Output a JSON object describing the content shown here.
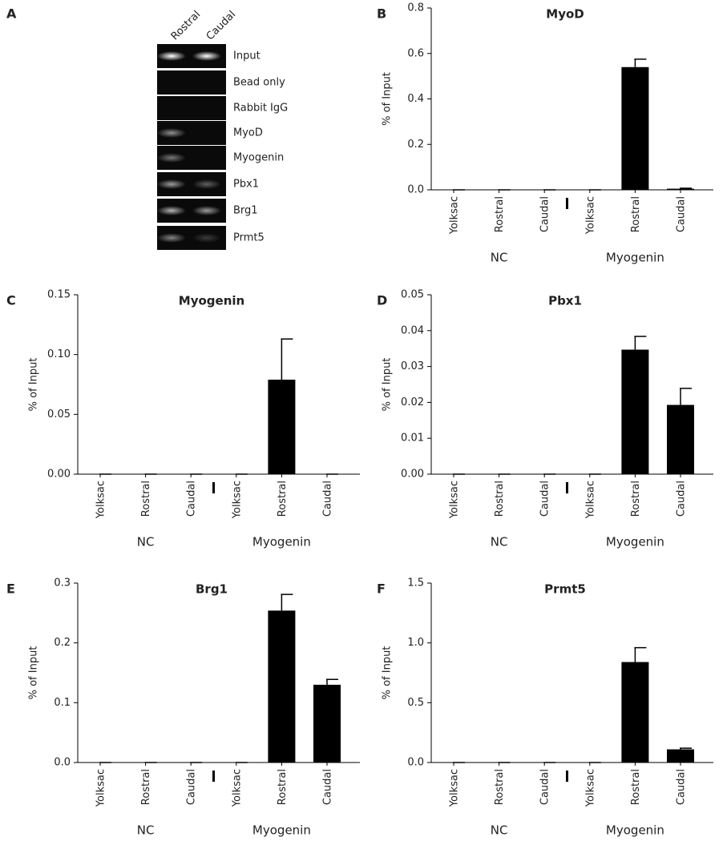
{
  "gel": {
    "panel": "A",
    "lanes": [
      "Rostral",
      "Caudal"
    ],
    "rows": [
      "Input",
      "Bead only",
      "Rabbit IgG",
      "MyoD",
      "Myogenin",
      "Pbx1",
      "Brg1",
      "Prmt5"
    ]
  },
  "chart_data": [
    {
      "type": "bar",
      "panel": "B",
      "title": "MyoD",
      "ylabel": "% of Input",
      "categories": [
        "Yolksac",
        "Rostral",
        "Caudal",
        "Yolksac",
        "Rostral",
        "Caudal"
      ],
      "group_labels": [
        "NC",
        "Myogenin"
      ],
      "color": "#000000",
      "values": [
        0,
        0,
        0,
        0,
        0.54,
        0.005
      ],
      "errors": [
        0,
        0,
        0,
        0,
        0.035,
        0.002
      ],
      "ylim": [
        0,
        0.8
      ],
      "yticks": [
        {
          "value": 0,
          "label": "0.0"
        },
        0.2,
        0.4,
        0.6,
        0.8
      ]
    },
    {
      "type": "bar",
      "panel": "C",
      "title": "Myogenin",
      "ylabel": "% of Input",
      "categories": [
        "Yolksac",
        "Rostral",
        "Caudal",
        "Yolksac",
        "Rostral",
        "Caudal"
      ],
      "group_labels": [
        "NC",
        "Myogenin"
      ],
      "color": "#000000",
      "values": [
        0,
        0,
        0,
        0,
        0.079,
        0
      ],
      "errors": [
        0,
        0,
        0,
        0,
        0.034,
        0
      ],
      "ylim": [
        0,
        0.15
      ],
      "yticks": [
        {
          "value": 0,
          "label": "0.00"
        },
        0.05,
        {
          "value": 0.1,
          "label": "0.10"
        },
        0.15
      ]
    },
    {
      "type": "bar",
      "panel": "D",
      "title": "Pbx1",
      "ylabel": "% of Input",
      "categories": [
        "Yolksac",
        "Rostral",
        "Caudal",
        "Yolksac",
        "Rostral",
        "Caudal"
      ],
      "group_labels": [
        "NC",
        "Myogenin"
      ],
      "color": "#000000",
      "values": [
        0,
        0,
        0,
        0,
        0.0347,
        0.0193
      ],
      "errors": [
        0,
        0,
        0,
        0,
        0.0037,
        0.0046
      ],
      "ylim": [
        0,
        0.05
      ],
      "yticks": [
        {
          "value": 0,
          "label": "0.00"
        },
        0.01,
        0.02,
        0.03,
        0.04,
        0.05
      ]
    },
    {
      "type": "bar",
      "panel": "E",
      "title": "Brg1",
      "ylabel": "% of Input",
      "categories": [
        "Yolksac",
        "Rostral",
        "Caudal",
        "Yolksac",
        "Rostral",
        "Caudal"
      ],
      "group_labels": [
        "NC",
        "Myogenin"
      ],
      "color": "#000000",
      "values": [
        0,
        0,
        0,
        0,
        0.254,
        0.13
      ],
      "errors": [
        0,
        0,
        0,
        0,
        0.027,
        0.009
      ],
      "ylim": [
        0,
        0.3
      ],
      "yticks": [
        {
          "value": 0,
          "label": "0.0"
        },
        0.1,
        0.2,
        0.3
      ]
    },
    {
      "type": "bar",
      "panel": "F",
      "title": "Prmt5",
      "ylabel": "% of Input",
      "categories": [
        "Yolksac",
        "Rostral",
        "Caudal",
        "Yolksac",
        "Rostral",
        "Caudal"
      ],
      "group_labels": [
        "NC",
        "Myogenin"
      ],
      "color": "#000000",
      "values": [
        0,
        0,
        0,
        0,
        0.84,
        0.11
      ],
      "errors": [
        0,
        0,
        0,
        0,
        0.12,
        0.01
      ],
      "ylim": [
        0,
        1.5
      ],
      "yticks": [
        {
          "value": 0,
          "label": "0.0"
        },
        0.5,
        {
          "value": 1,
          "label": "1.0"
        },
        1.5
      ]
    }
  ]
}
